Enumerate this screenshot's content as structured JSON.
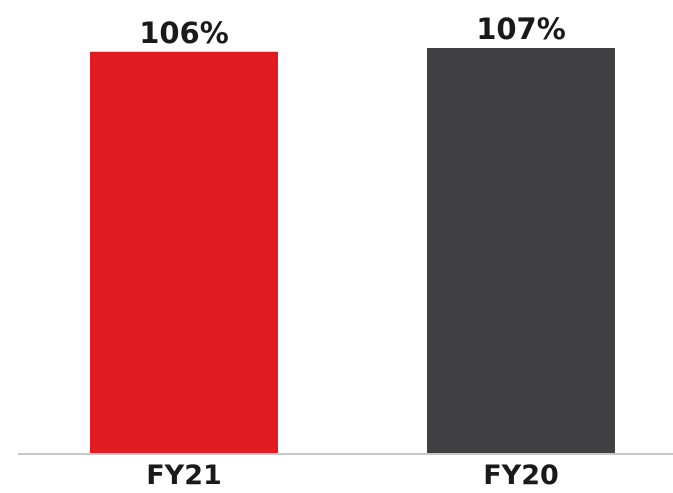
{
  "chart_data": {
    "type": "bar",
    "categories": [
      "FY21",
      "FY20"
    ],
    "series": [
      {
        "values": [
          106,
          107
        ],
        "data_labels": [
          "106%",
          "107%"
        ],
        "colors": [
          "#e01b22",
          "#404042"
        ]
      }
    ],
    "ylim": [
      0,
      107
    ],
    "grid": false,
    "legend": "none",
    "axis_color": "#c8c8c8",
    "label_color": "#1a1a1a"
  }
}
